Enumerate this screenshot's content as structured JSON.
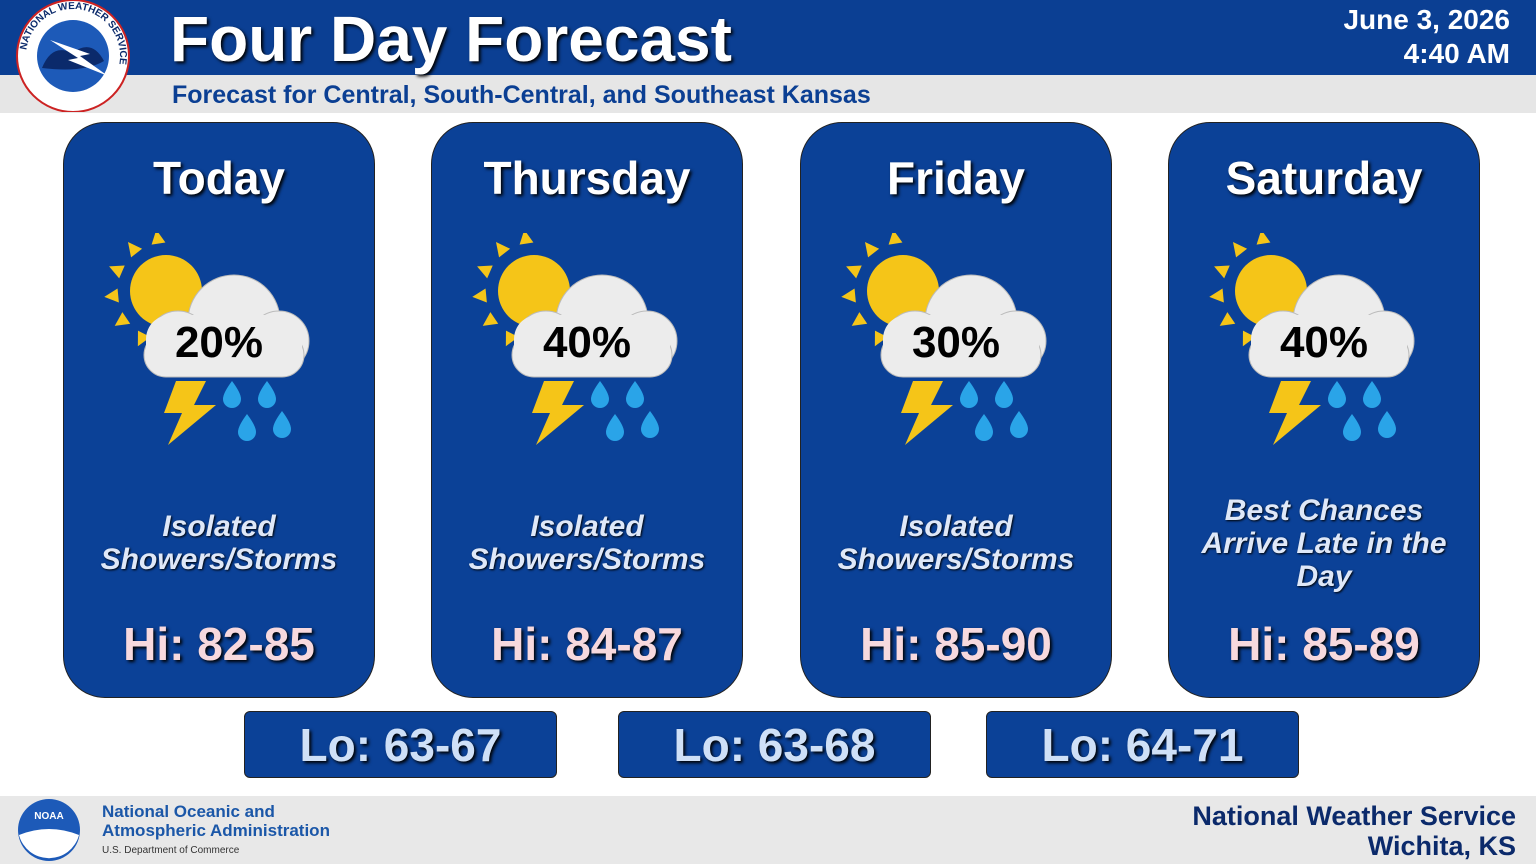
{
  "header": {
    "title": "Four Day Forecast",
    "subtitle": "Forecast for Central, South-Central, and Southeast Kansas",
    "date": "June 3, 2026",
    "time": "4:40 AM",
    "logo_text": "NATIONAL WEATHER SERVICE"
  },
  "days": [
    {
      "name": "Today",
      "pop": "20%",
      "summary": "Isolated Showers/Storms",
      "high": "Hi: 82-85"
    },
    {
      "name": "Thursday",
      "pop": "40%",
      "summary": "Isolated Showers/Storms",
      "high": "Hi: 84-87"
    },
    {
      "name": "Friday",
      "pop": "30%",
      "summary": "Isolated Showers/Storms",
      "high": "Hi: 85-90"
    },
    {
      "name": "Saturday",
      "pop": "40%",
      "summary": "Best Chances Arrive Late in the Day",
      "high": "Hi: 85-89"
    }
  ],
  "lows": [
    "Lo: 63-67",
    "Lo: 63-68",
    "Lo: 64-71"
  ],
  "footer": {
    "noaa_logo": "NOAA",
    "agency_line1": "National Oceanic and",
    "agency_line2": "Atmospheric Administration",
    "department": "U.S. Department of Commerce",
    "office": "National Weather Service",
    "location": "Wichita, KS"
  }
}
